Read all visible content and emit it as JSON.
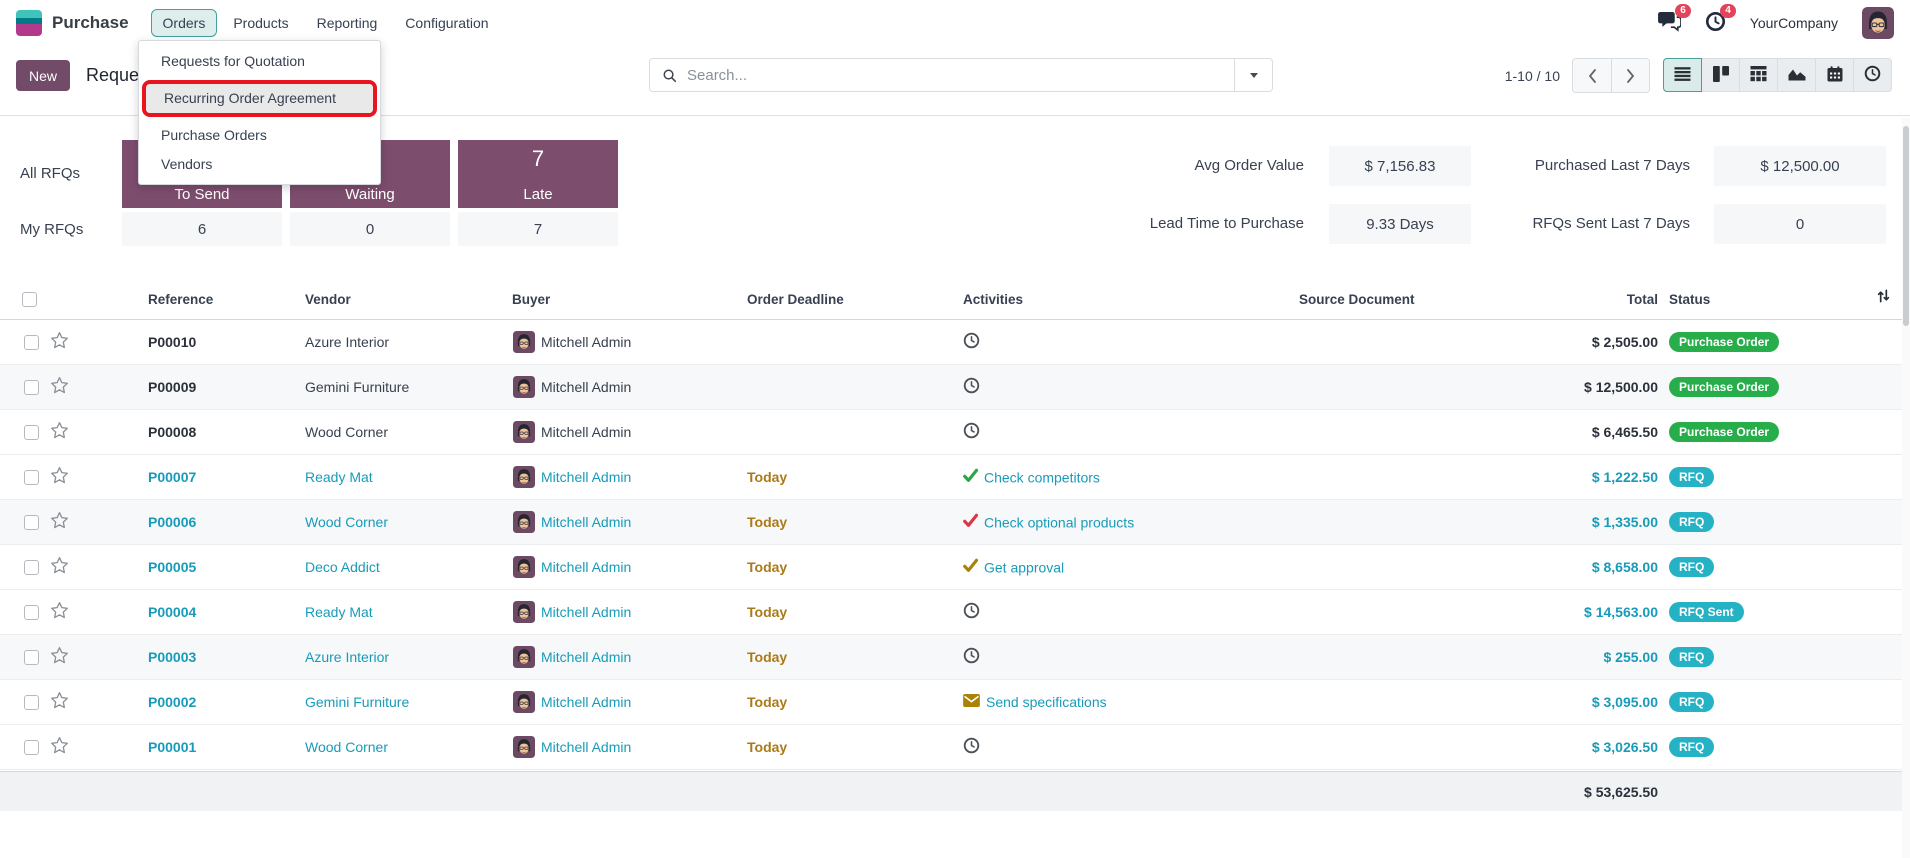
{
  "colors": {
    "purple": "#714B67",
    "block_purple": "#7d4d6e",
    "teal_link": "#189bb8",
    "badge_green": "#28ad4b",
    "badge_teal": "#24b2c4",
    "highlight_red": "#e8141e",
    "badge_red": "#e4435c",
    "warning_gold": "#ab7a18",
    "menu_active_bg": "#ddeeec",
    "menu_active_border": "#43a09a"
  },
  "navbar": {
    "app_name": "Purchase",
    "menus": [
      {
        "label": "Orders",
        "active": true
      },
      {
        "label": "Products",
        "active": false
      },
      {
        "label": "Reporting",
        "active": false
      },
      {
        "label": "Configuration",
        "active": false
      }
    ],
    "message_count": "6",
    "activity_count": "4",
    "company": "YourCompany"
  },
  "orders_menu": {
    "items": [
      {
        "label": "Requests for Quotation",
        "highlighted": false
      },
      {
        "label": "Recurring Order Agreement",
        "highlighted": true
      },
      {
        "label": "Purchase Orders",
        "highlighted": false
      },
      {
        "label": "Vendors",
        "highlighted": false
      }
    ]
  },
  "control_panel": {
    "new_label": "New",
    "breadcrumb": "Reques",
    "search_placeholder": "Search...",
    "pager_text": "1-10 / 10",
    "views": [
      {
        "name": "list",
        "active": true
      },
      {
        "name": "kanban",
        "active": false
      },
      {
        "name": "pivot",
        "active": false
      },
      {
        "name": "graph",
        "active": false
      },
      {
        "name": "calendar",
        "active": false
      },
      {
        "name": "activity",
        "active": false
      }
    ]
  },
  "dashboard": {
    "columns": [
      "To Send",
      "Waiting",
      "Late"
    ],
    "rows": [
      {
        "label": "All RFQs",
        "values": [
          "",
          "",
          "7"
        ]
      },
      {
        "label": "My RFQs",
        "values": [
          "6",
          "0",
          "7"
        ]
      }
    ],
    "stats": [
      {
        "label": "Avg Order Value",
        "value": "$ 7,156.83"
      },
      {
        "label": "Purchased Last 7 Days",
        "value": "$ 12,500.00"
      },
      {
        "label": "Lead Time to Purchase",
        "value": "9.33 Days"
      },
      {
        "label": "RFQs Sent Last 7 Days",
        "value": "0"
      }
    ]
  },
  "table": {
    "columns": [
      "Reference",
      "Vendor",
      "Buyer",
      "Order Deadline",
      "Activities",
      "Source Document",
      "Total",
      "Status"
    ],
    "rows": [
      {
        "reference": "P00010",
        "vendor": "Azure Interior",
        "buyer": "Mitchell Admin",
        "deadline": "",
        "activity_icon": "clock-icon",
        "activity_color": "gray",
        "activity_label": "",
        "total": "$ 2,505.00",
        "status": "Purchase Order",
        "status_style": "green",
        "teal_text": false
      },
      {
        "reference": "P00009",
        "vendor": "Gemini Furniture",
        "buyer": "Mitchell Admin",
        "deadline": "",
        "activity_icon": "clock-icon",
        "activity_color": "gray",
        "activity_label": "",
        "total": "$ 12,500.00",
        "status": "Purchase Order",
        "status_style": "green",
        "teal_text": false
      },
      {
        "reference": "P00008",
        "vendor": "Wood Corner",
        "buyer": "Mitchell Admin",
        "deadline": "",
        "activity_icon": "clock-icon",
        "activity_color": "gray",
        "activity_label": "",
        "total": "$ 6,465.50",
        "status": "Purchase Order",
        "status_style": "green",
        "teal_text": false
      },
      {
        "reference": "P00007",
        "vendor": "Ready Mat",
        "buyer": "Mitchell Admin",
        "deadline": "Today",
        "activity_icon": "check-icon",
        "activity_color": "green",
        "activity_label": "Check competitors",
        "total": "$ 1,222.50",
        "status": "RFQ",
        "status_style": "teal",
        "teal_text": true
      },
      {
        "reference": "P00006",
        "vendor": "Wood Corner",
        "buyer": "Mitchell Admin",
        "deadline": "Today",
        "activity_icon": "check-icon",
        "activity_color": "red",
        "activity_label": "Check optional products",
        "total": "$ 1,335.00",
        "status": "RFQ",
        "status_style": "teal",
        "teal_text": true
      },
      {
        "reference": "P00005",
        "vendor": "Deco Addict",
        "buyer": "Mitchell Admin",
        "deadline": "Today",
        "activity_icon": "check-icon",
        "activity_color": "gold",
        "activity_label": "Get approval",
        "total": "$ 8,658.00",
        "status": "RFQ",
        "status_style": "teal",
        "teal_text": true
      },
      {
        "reference": "P00004",
        "vendor": "Ready Mat",
        "buyer": "Mitchell Admin",
        "deadline": "Today",
        "activity_icon": "clock-icon",
        "activity_color": "gray",
        "activity_label": "",
        "total": "$ 14,563.00",
        "status": "RFQ Sent",
        "status_style": "teal",
        "teal_text": true
      },
      {
        "reference": "P00003",
        "vendor": "Azure Interior",
        "buyer": "Mitchell Admin",
        "deadline": "Today",
        "activity_icon": "clock-icon",
        "activity_color": "gray",
        "activity_label": "",
        "total": "$ 255.00",
        "status": "RFQ",
        "status_style": "teal",
        "teal_text": true
      },
      {
        "reference": "P00002",
        "vendor": "Gemini Furniture",
        "buyer": "Mitchell Admin",
        "deadline": "Today",
        "activity_icon": "envelope-icon",
        "activity_color": "gold",
        "activity_label": "Send specifications",
        "total": "$ 3,095.00",
        "status": "RFQ",
        "status_style": "teal",
        "teal_text": true
      },
      {
        "reference": "P00001",
        "vendor": "Wood Corner",
        "buyer": "Mitchell Admin",
        "deadline": "Today",
        "activity_icon": "clock-icon",
        "activity_color": "gray",
        "activity_label": "",
        "total": "$ 3,026.50",
        "status": "RFQ",
        "status_style": "teal",
        "teal_text": true
      }
    ],
    "footer_total": "$ 53,625.50"
  }
}
